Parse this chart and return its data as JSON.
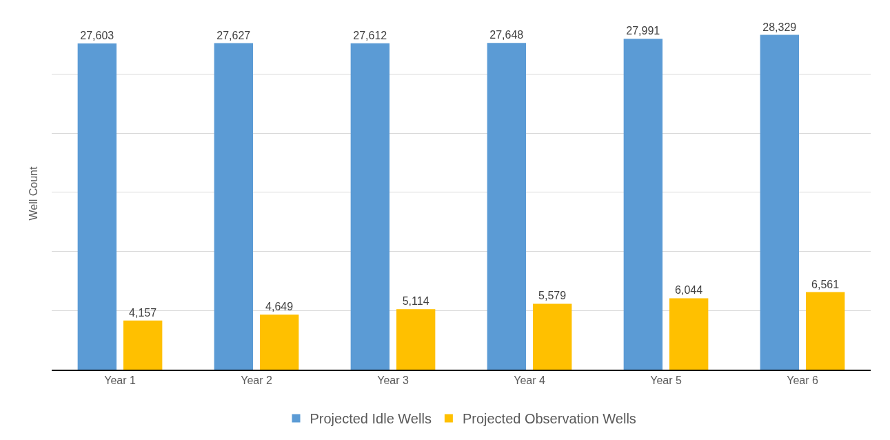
{
  "chart_data": {
    "type": "bar",
    "ylabel": "Well Count",
    "categories": [
      "Year 1",
      "Year 2",
      "Year 3",
      "Year 4",
      "Year 5",
      "Year 6"
    ],
    "series": [
      {
        "name": "Projected Idle Wells",
        "color": "#5b9bd5",
        "values": [
          27603,
          27627,
          27612,
          27648,
          27991,
          28329
        ],
        "value_labels": [
          "27,603",
          "27,627",
          "27,612",
          "27,648",
          "27,991",
          "28,329"
        ]
      },
      {
        "name": "Projected Observation Wells",
        "color": "#ffc000",
        "values": [
          4157,
          4649,
          5114,
          5579,
          6044,
          6561
        ],
        "value_labels": [
          "4,157",
          "4,649",
          "5,114",
          "5,579",
          "6,044",
          "6,561"
        ]
      }
    ],
    "tick_labels": "x",
    "grid": "y",
    "legend": "bottom"
  }
}
